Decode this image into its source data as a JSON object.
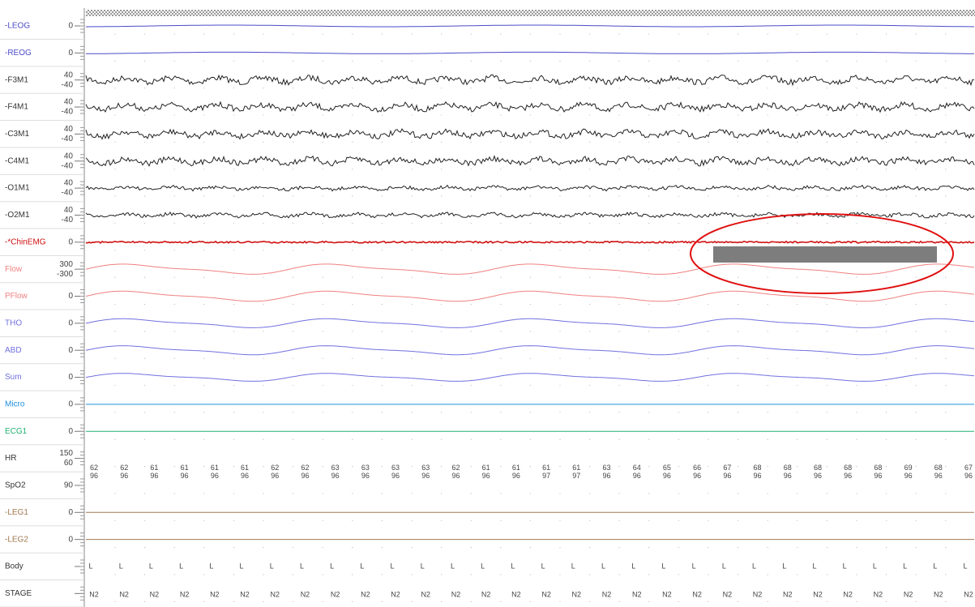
{
  "channels": [
    {
      "label": "-LEOG",
      "scale": [
        "0"
      ]
    },
    {
      "label": "-REOG",
      "scale": [
        "0"
      ]
    },
    {
      "label": "-F3M1",
      "scale": [
        "40",
        "-40"
      ]
    },
    {
      "label": "-F4M1",
      "scale": [
        "40",
        "-40"
      ]
    },
    {
      "label": "-C3M1",
      "scale": [
        "40",
        "-40"
      ]
    },
    {
      "label": "-C4M1",
      "scale": [
        "40",
        "-40"
      ]
    },
    {
      "label": "-O1M1",
      "scale": [
        "40",
        "-40"
      ]
    },
    {
      "label": "-O2M1",
      "scale": [
        "40",
        "-40"
      ]
    },
    {
      "label": "-*ChinEMG",
      "scale": [
        "0"
      ]
    },
    {
      "label": "Flow",
      "scale": [
        "300",
        "-300"
      ]
    },
    {
      "label": "PFlow",
      "scale": [
        "0"
      ]
    },
    {
      "label": "THO",
      "scale": [
        "0"
      ]
    },
    {
      "label": "ABD",
      "scale": [
        "0"
      ]
    },
    {
      "label": "Sum",
      "scale": [
        "0"
      ]
    },
    {
      "label": "Micro",
      "scale": [
        "0"
      ]
    },
    {
      "label": "ECG1",
      "scale": [
        "0"
      ]
    },
    {
      "label": "HR",
      "scale": [
        "150",
        "60"
      ]
    },
    {
      "label": "SpO2",
      "scale": [
        "90"
      ]
    },
    {
      "label": "-LEG1",
      "scale": [
        "0"
      ]
    },
    {
      "label": "-LEG2",
      "scale": [
        "0"
      ]
    },
    {
      "label": "Body",
      "scale": []
    },
    {
      "label": "STAGE",
      "scale": []
    }
  ],
  "hr": [
    "62",
    "62",
    "61",
    "61",
    "61",
    "61",
    "62",
    "62",
    "63",
    "63",
    "63",
    "63",
    "62",
    "61",
    "61",
    "61",
    "61",
    "63",
    "64",
    "65",
    "66",
    "67",
    "68",
    "68",
    "68",
    "68",
    "68",
    "69",
    "68",
    "67"
  ],
  "spo2": [
    "96",
    "96",
    "96",
    "96",
    "96",
    "96",
    "96",
    "96",
    "96",
    "96",
    "96",
    "96",
    "96",
    "96",
    "96",
    "97",
    "97",
    "96",
    "96",
    "96",
    "96",
    "96",
    "96",
    "96",
    "96",
    "96",
    "96",
    "96",
    "96",
    "96"
  ],
  "body": [
    "L",
    "L",
    "L",
    "L",
    "L",
    "L",
    "L",
    "L",
    "L",
    "L",
    "L",
    "L",
    "L",
    "L",
    "L",
    "L",
    "L",
    "L",
    "L",
    "L",
    "L",
    "L",
    "L",
    "L",
    "L",
    "L",
    "L",
    "L",
    "L",
    "L"
  ],
  "stage": [
    "N2",
    "N2",
    "N2",
    "N2",
    "N2",
    "N2",
    "N2",
    "N2",
    "N2",
    "N2",
    "N2",
    "N2",
    "N2",
    "N2",
    "N2",
    "N2",
    "N2",
    "N2",
    "N2",
    "N2",
    "N2",
    "N2",
    "N2",
    "N2",
    "N2",
    "N2",
    "N2",
    "N2",
    "N2",
    "N2"
  ]
}
